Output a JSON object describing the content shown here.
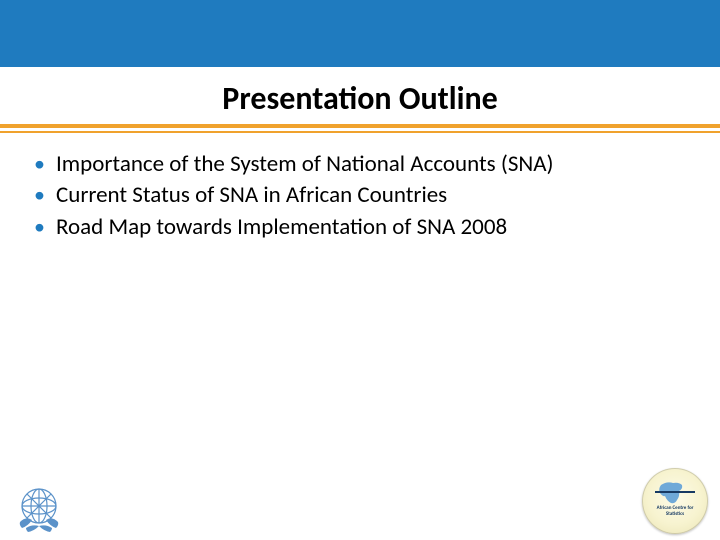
{
  "colors": {
    "top_band": "#1f7bbf",
    "underline_orange": "#f0a22d",
    "underline_thin": "#f0a22d",
    "bullet_marker": "#1f7bbf",
    "un_blue": "#5b92c9",
    "badge_map": "#6fa9d8",
    "badge_text": "#173a63"
  },
  "title": "Presentation Outline",
  "bullets": [
    "Importance of the System of National Accounts (SNA)",
    "Current Status of SNA in African Countries",
    "Road Map towards Implementation of SNA 2008"
  ],
  "badge": {
    "line1": "African Centre for",
    "line2": "Statistics"
  }
}
